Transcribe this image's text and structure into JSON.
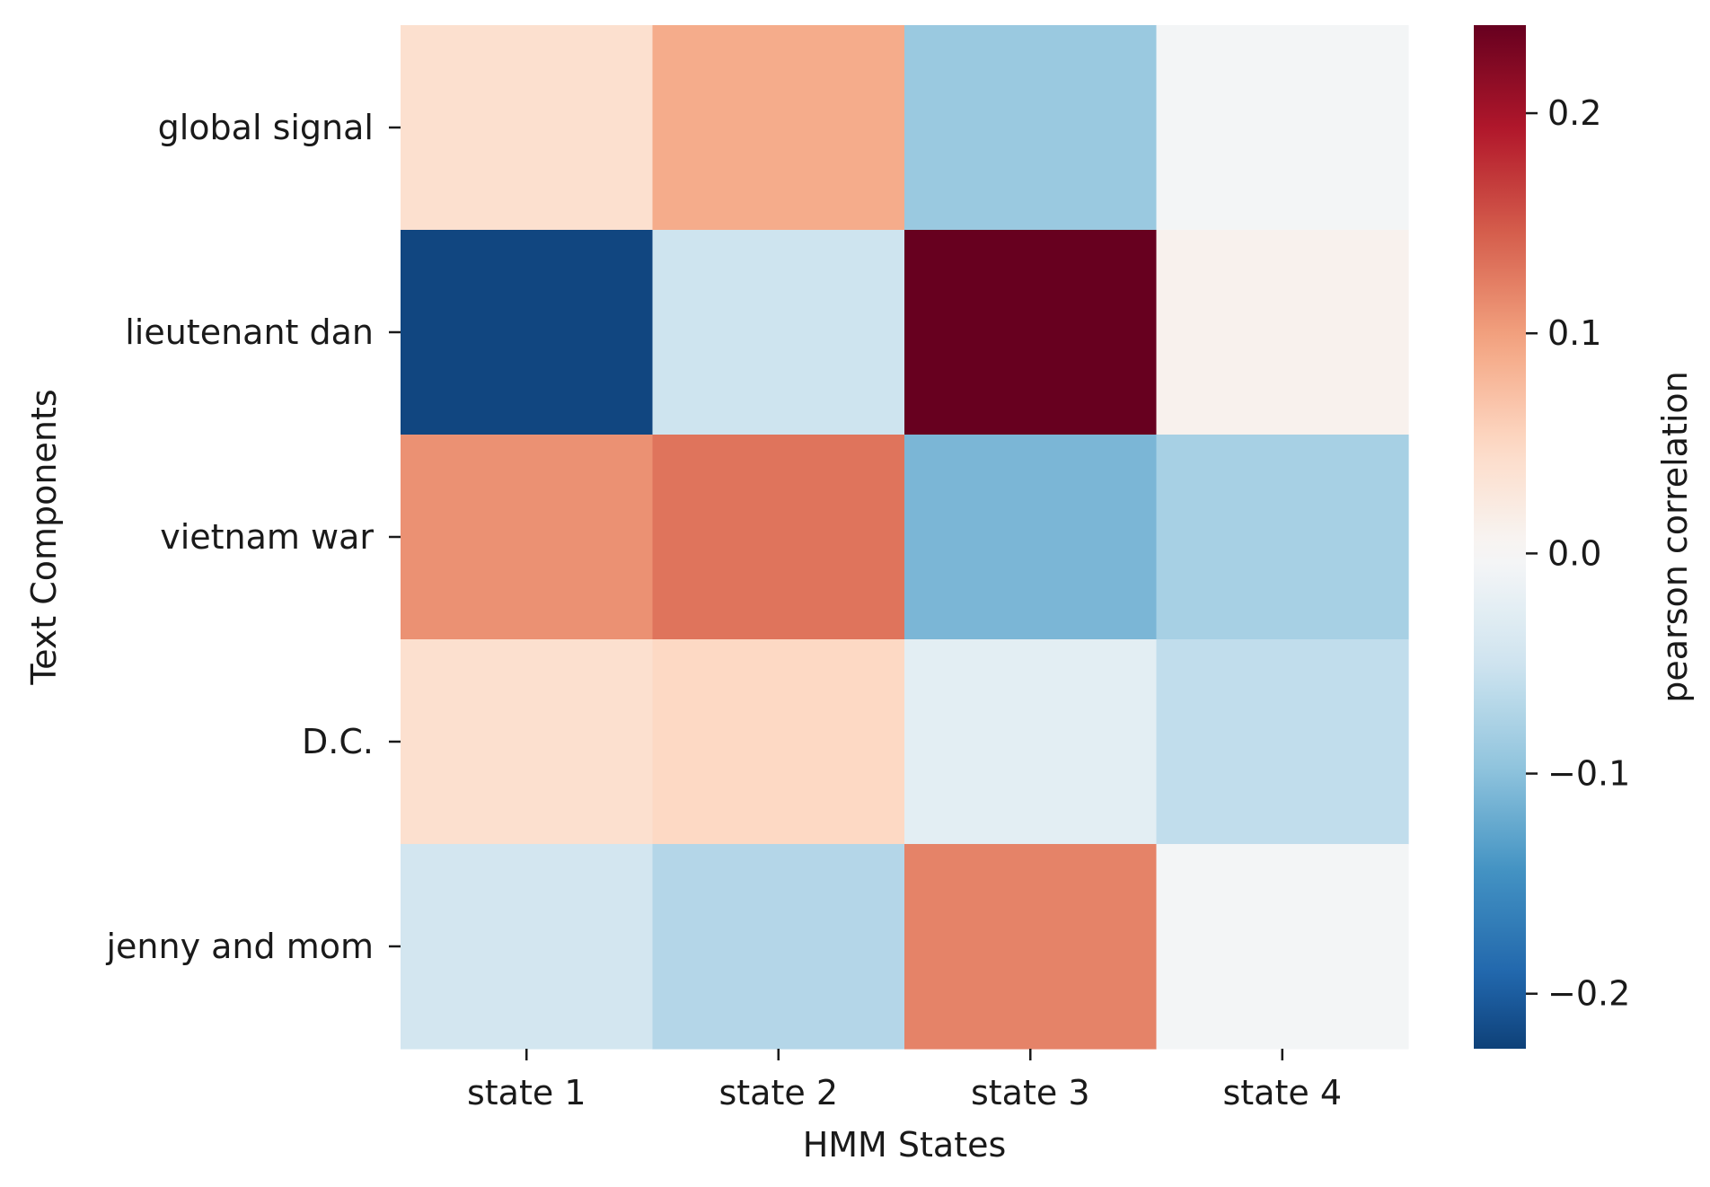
{
  "chart_data": {
    "type": "heatmap",
    "title": "",
    "xlabel": "HMM States",
    "ylabel": "Text Components",
    "x_categories": [
      "state 1",
      "state 2",
      "state 3",
      "state 4"
    ],
    "y_categories": [
      "global signal",
      "lieutenant dan",
      "vietnam war",
      "D.C.",
      "jenny and mom"
    ],
    "values": [
      [
        0.04,
        0.09,
        -0.09,
        -0.005
      ],
      [
        -0.22,
        -0.05,
        0.24,
        0.01
      ],
      [
        0.11,
        0.13,
        -0.11,
        -0.08
      ],
      [
        0.04,
        0.05,
        -0.025,
        -0.06
      ],
      [
        -0.045,
        -0.07,
        0.12,
        -0.005
      ]
    ],
    "colormap": "RdBu_r",
    "colorbar": {
      "label": "pearson correlation",
      "min": -0.225,
      "max": 0.24,
      "ticks": [
        0.2,
        0.1,
        0.0,
        -0.1,
        -0.2
      ],
      "tick_labels": [
        "0.2",
        "0.1",
        "0.0",
        "−0.1",
        "−0.2"
      ],
      "placement": "right"
    },
    "grid": false
  }
}
